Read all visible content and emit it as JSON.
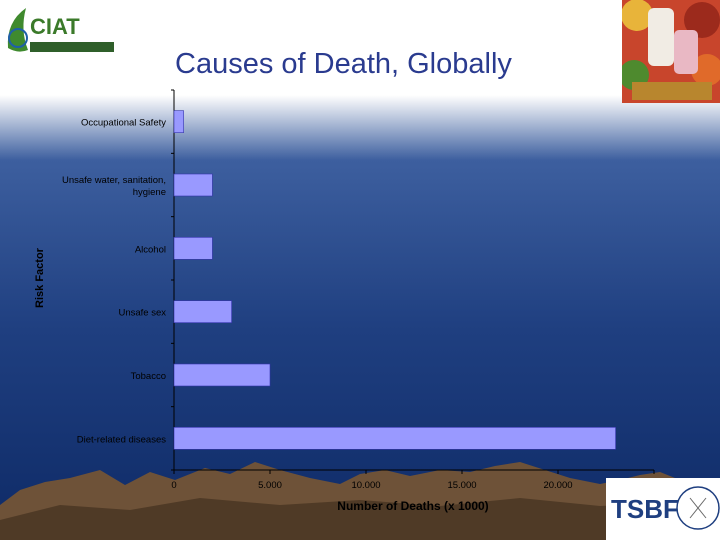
{
  "slide": {
    "title": "Causes of Death, Globally",
    "logo_left": "CIAT",
    "logo_right": "TSBF"
  },
  "colors": {
    "bar_fill": "#9999ff",
    "bar_stroke": "#3333aa",
    "title": "#2a3b8f",
    "background_top": "#ffffff",
    "background_bottom": "#0e2a66"
  },
  "chart_data": {
    "type": "bar",
    "orientation": "horizontal",
    "title": "",
    "xlabel": "Number of Deaths (x 1000)",
    "ylabel": "Risk Factor",
    "categories": [
      "Occupational Safety",
      "Unsafe water, sanitation, hygiene",
      "Alcohol",
      "Unsafe sex",
      "Tobacco",
      "Diet-related diseases"
    ],
    "category_labels": [
      [
        "Occupational Safety"
      ],
      [
        "Unsafe water, sanitation,",
        "hygiene"
      ],
      [
        "Alcohol"
      ],
      [
        "Unsafe sex"
      ],
      [
        "Tobacco"
      ],
      [
        "Diet-related diseases"
      ]
    ],
    "values": [
      500,
      2000,
      2000,
      3000,
      5000,
      23000
    ],
    "xlim": [
      0,
      25000
    ],
    "xticks": [
      0,
      5000,
      10000,
      15000,
      20000
    ],
    "xtick_labels": [
      "0",
      "5.000",
      "10.000",
      "15.000",
      "20.000"
    ],
    "grid": false,
    "legend": "none"
  }
}
